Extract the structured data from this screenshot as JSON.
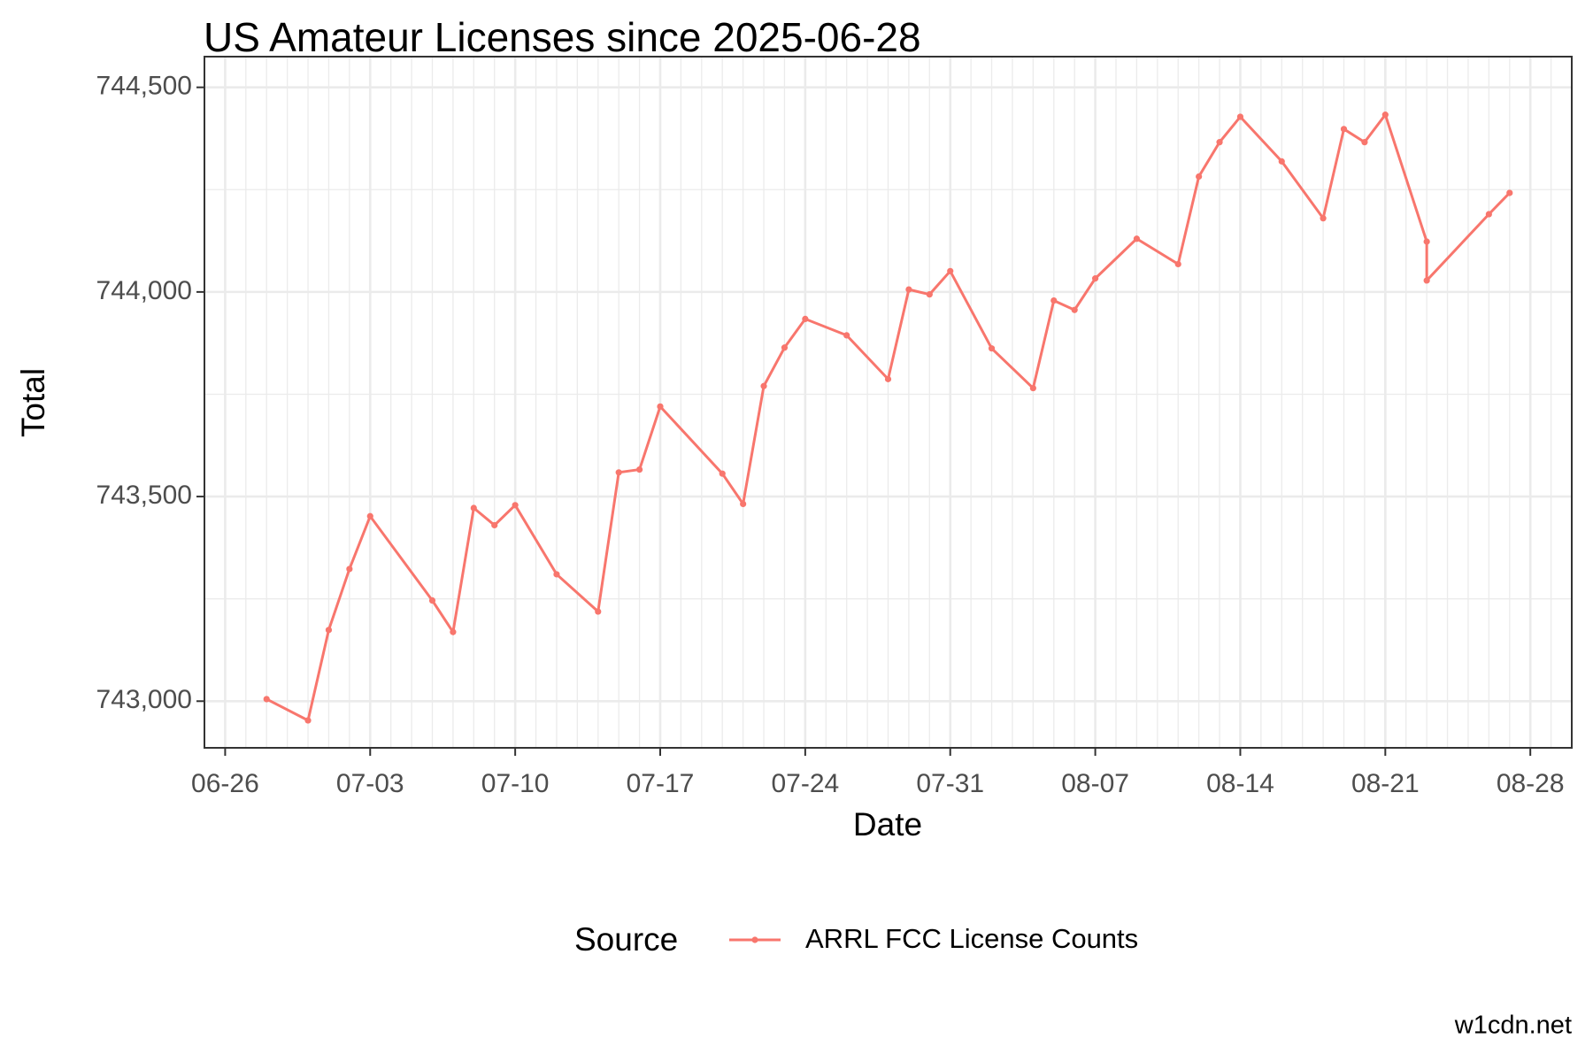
{
  "chart_data": {
    "type": "line",
    "title": "US Amateur Licenses since 2025-06-28",
    "x_label": "Date",
    "y_label": "Total",
    "legend_title": "Source",
    "credit": "w1cdn.net",
    "x": [
      "06-28",
      "06-30",
      "07-01",
      "07-02",
      "07-03",
      "07-06",
      "07-07",
      "07-08",
      "07-09",
      "07-10",
      "07-12",
      "07-14",
      "07-15",
      "07-16",
      "07-17",
      "07-20",
      "07-21",
      "07-22",
      "07-23",
      "07-24",
      "07-26",
      "07-28",
      "07-29",
      "07-30",
      "07-31",
      "08-02",
      "08-04",
      "08-05",
      "08-06",
      "08-07",
      "08-09",
      "08-11",
      "08-12",
      "08-13",
      "08-14",
      "08-16",
      "08-18",
      "08-19",
      "08-20",
      "08-21",
      "08-23",
      "08-23",
      "08-26",
      "08-27"
    ],
    "series": [
      {
        "name": "ARRL FCC License Counts",
        "color": "#f8766d",
        "values": [
          743005,
          742953,
          743174,
          743323,
          743452,
          743246,
          743169,
          743472,
          743430,
          743479,
          743310,
          743219,
          743559,
          743566,
          743720,
          743556,
          743482,
          743770,
          743864,
          743934,
          743894,
          743787,
          744006,
          743994,
          744051,
          743862,
          743765,
          743979,
          743956,
          744033,
          744130,
          744068,
          744282,
          744366,
          744428,
          744319,
          744180,
          744398,
          744366,
          744433,
          744123,
          744028,
          744190,
          744242
        ]
      }
    ],
    "xlim": [
      "06-25",
      "08-30"
    ],
    "xticks": [
      "06-26",
      "07-03",
      "07-10",
      "07-17",
      "07-24",
      "07-31",
      "08-07",
      "08-14",
      "08-21",
      "08-28"
    ],
    "ylim": [
      742886,
      744575
    ],
    "yticks": [
      {
        "value": 743000,
        "label": "743,000"
      },
      {
        "value": 743500,
        "label": "743,500"
      },
      {
        "value": 744000,
        "label": "744,000"
      },
      {
        "value": 744500,
        "label": "744,500"
      }
    ],
    "grid": true,
    "legend_position": "bottom"
  }
}
